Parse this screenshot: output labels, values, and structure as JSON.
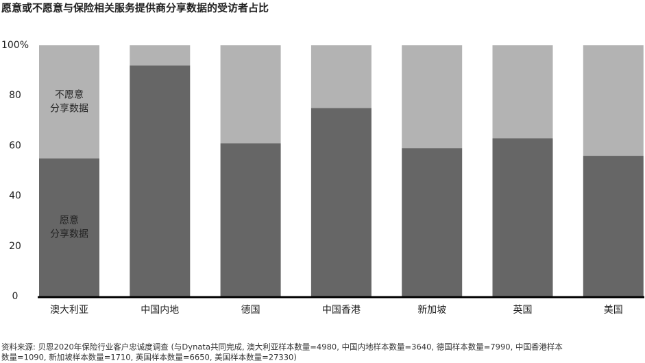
{
  "chart_data": {
    "type": "stacked_bar",
    "title": "愿意或不愿意与保险相关服务提供商分享数据的受访者占比",
    "categories": [
      "澳大利亚",
      "中国内地",
      "德国",
      "中国香港",
      "新加坡",
      "英国",
      "美国"
    ],
    "series": [
      {
        "name": "愿意\n分享数据",
        "color": "#666666",
        "values": [
          55,
          92,
          61,
          75,
          59,
          63,
          56
        ]
      },
      {
        "name": "不愿意\n分享数据",
        "color": "#b3b3b3",
        "values": [
          45,
          8,
          39,
          25,
          41,
          37,
          44
        ]
      }
    ],
    "ylim": [
      0,
      100
    ],
    "yticks": [
      0,
      20,
      40,
      60,
      80,
      {
        "value": 100,
        "label": "100%"
      }
    ],
    "source": [
      "资料来源: 贝恩2020年保险行业客户忠诚度调查 (与Dynata共同完成, 澳大利亚样本数量=4980, 中国内地样本数量=3640, 德国样本数量=7990, 中国香港样本",
      "数量=1090, 新加坡样本数量=1710, 英国样本数量=6650, 美国样本数量=27330)"
    ]
  }
}
